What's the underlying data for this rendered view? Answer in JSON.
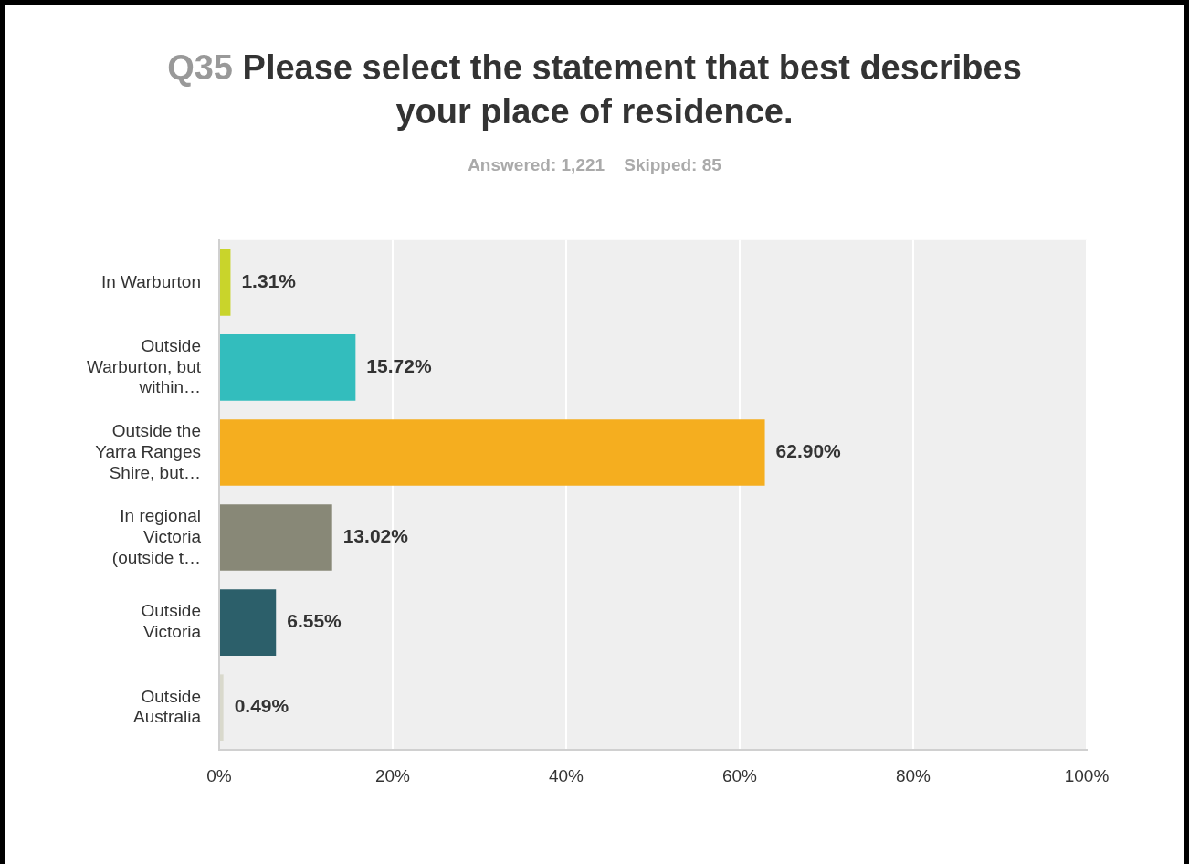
{
  "chart_data": {
    "type": "bar",
    "orientation": "horizontal",
    "title": "Q35 Please select the statement that best describes your place of residence.",
    "subtitle": "Answered: 1,221    Skipped: 85",
    "categories": [
      "In Warburton",
      "Outside Warburton, but within…",
      "Outside the Yarra Ranges Shire, but…",
      "In regional Victoria (outside t…",
      "Outside Victoria",
      "Outside Australia"
    ],
    "values": [
      1.31,
      15.72,
      62.9,
      13.02,
      6.55,
      0.49
    ],
    "colors": [
      "#c9d42b",
      "#33bdbd",
      "#f5ae1f",
      "#888877",
      "#2c5f6a",
      "#d9d9cc"
    ],
    "value_labels": [
      "1.31%",
      "15.72%",
      "62.90%",
      "13.02%",
      "6.55%",
      "0.49%"
    ],
    "xlim": [
      0,
      100
    ],
    "xticks": [
      {
        "value": 0,
        "label": "0%"
      },
      {
        "value": 20,
        "label": "20%"
      },
      {
        "value": 40,
        "label": "40%"
      },
      {
        "value": 60,
        "label": "60%"
      },
      {
        "value": 80,
        "label": "80%"
      },
      {
        "value": 100,
        "label": "100%"
      }
    ],
    "grid": "x",
    "legend": false
  }
}
